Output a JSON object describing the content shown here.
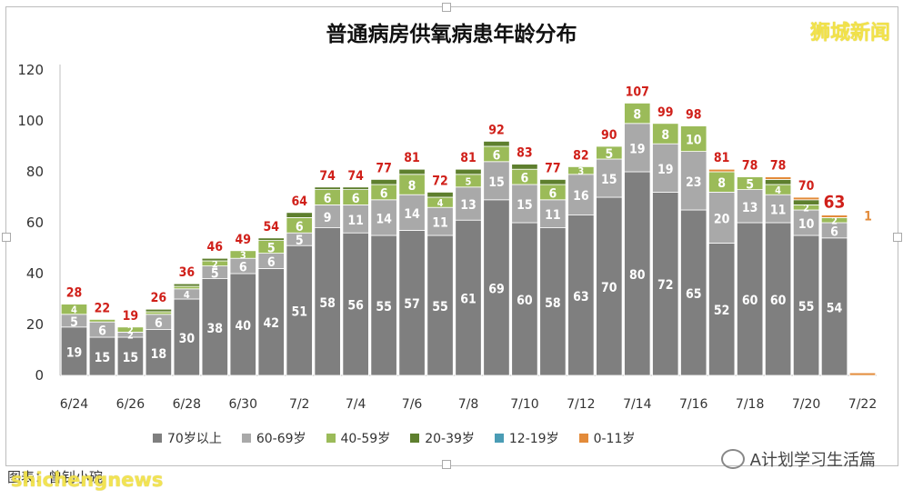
{
  "page": {
    "title": "普通病房供氧病患年龄分布",
    "watermark_top": "狮城新闻",
    "footer_source": "图表：曾钊小碗",
    "footer_watermark": "shichengnews",
    "footer_account": "A计划学习生活篇"
  },
  "chart_data": {
    "type": "bar",
    "stacked": true,
    "title": "普通病房供氧病患年龄分布",
    "ylim": [
      0,
      120
    ],
    "yticks": [
      0,
      20,
      40,
      60,
      80,
      100,
      120
    ],
    "xtick_labels": [
      "6/24",
      "6/26",
      "6/28",
      "6/30",
      "7/2",
      "7/4",
      "7/6",
      "7/8",
      "7/10",
      "7/12",
      "7/14",
      "7/16",
      "7/18",
      "7/20",
      "7/22"
    ],
    "categories": [
      "6/24",
      "6/25",
      "6/26",
      "6/27",
      "6/28",
      "6/29",
      "6/30",
      "7/1",
      "7/2",
      "7/3",
      "7/4",
      "7/5",
      "7/6",
      "7/7",
      "7/8",
      "7/9",
      "7/10",
      "7/11",
      "7/12",
      "7/13",
      "7/14",
      "7/15",
      "7/16",
      "7/17",
      "7/18",
      "7/19",
      "7/20",
      "7/21",
      "7/22"
    ],
    "series": [
      {
        "name": "70岁以上",
        "color": "#7f7f7f",
        "values": [
          19,
          15,
          15,
          18,
          30,
          38,
          40,
          42,
          51,
          58,
          56,
          55,
          57,
          55,
          61,
          69,
          60,
          58,
          63,
          70,
          80,
          72,
          65,
          52,
          60,
          60,
          55,
          54,
          0
        ]
      },
      {
        "name": "60-69岁",
        "color": "#a9a9a9",
        "values": [
          5,
          6,
          2,
          6,
          4,
          5,
          6,
          6,
          5,
          9,
          11,
          14,
          14,
          11,
          13,
          15,
          15,
          11,
          16,
          15,
          19,
          19,
          23,
          20,
          13,
          11,
          10,
          6,
          0
        ]
      },
      {
        "name": "40-59岁",
        "color": "#9bbb59",
        "values": [
          4,
          1,
          2,
          1,
          1,
          2,
          3,
          5,
          6,
          6,
          6,
          6,
          8,
          4,
          5,
          6,
          6,
          6,
          3,
          5,
          8,
          8,
          10,
          8,
          5,
          4,
          2,
          2,
          0
        ]
      },
      {
        "name": "20-39岁",
        "color": "#5e7f2e",
        "values": [
          0,
          0,
          0,
          1,
          1,
          1,
          0,
          1,
          2,
          1,
          1,
          2,
          2,
          2,
          2,
          2,
          2,
          2,
          0,
          0,
          0,
          0,
          0,
          0,
          0,
          2,
          2,
          0,
          0
        ]
      },
      {
        "name": "12-19岁",
        "color": "#4a9cb5",
        "values": [
          0,
          0,
          0,
          0,
          0,
          0,
          0,
          0,
          0,
          0,
          0,
          0,
          0,
          0,
          0,
          0,
          0,
          0,
          0,
          0,
          0,
          0,
          0,
          0,
          0,
          0,
          0,
          0,
          0
        ]
      },
      {
        "name": "0-11岁",
        "color": "#e38b3a",
        "values": [
          0,
          0,
          0,
          0,
          0,
          0,
          0,
          0,
          0,
          0,
          0,
          0,
          0,
          0,
          0,
          0,
          0,
          0,
          0,
          0,
          0,
          0,
          0,
          1,
          0,
          1,
          1,
          1,
          1
        ]
      }
    ],
    "totals": [
      28,
      22,
      19,
      26,
      36,
      46,
      49,
      54,
      64,
      74,
      74,
      77,
      81,
      72,
      81,
      92,
      83,
      77,
      82,
      90,
      107,
      99,
      98,
      81,
      78,
      78,
      70,
      63,
      1
    ],
    "grid": false,
    "legend_position": "bottom",
    "colors": {
      "label_text": "#ffffff",
      "total_text": "#d0201a"
    }
  }
}
